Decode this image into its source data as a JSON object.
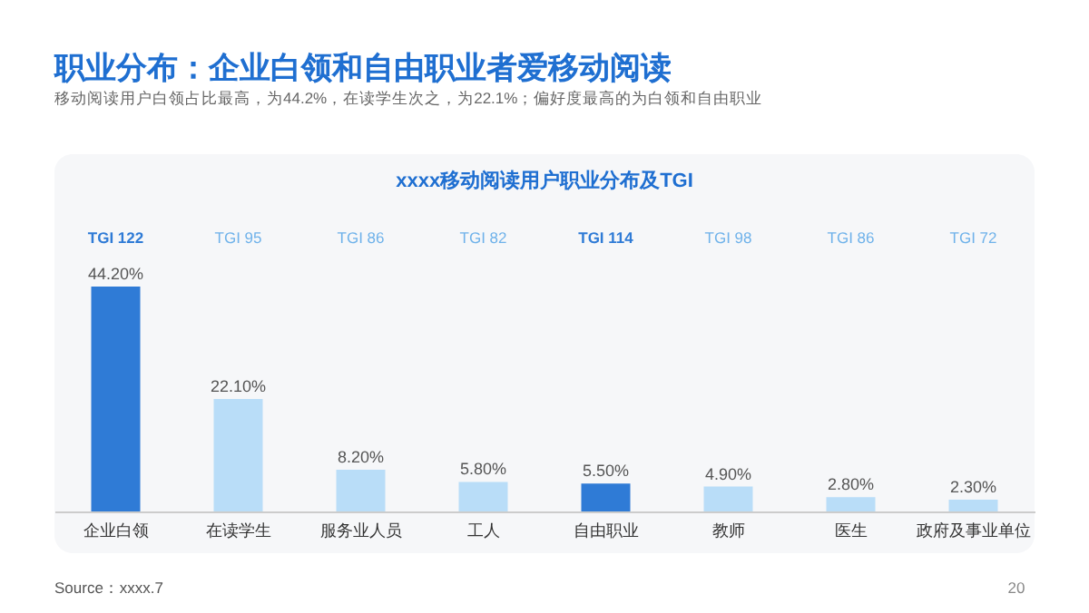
{
  "chart_data": {
    "type": "bar",
    "title": "职业分布：企业白领和自由职业者爱移动阅读",
    "subtitle": "移动阅读用户白领占比最高，为44.2%，在读学生次之，为22.1%；偏好度最高的为白领和自由职业",
    "categories": [
      "企业白领",
      "在读学生",
      "服务业人员",
      "工人",
      "自由职业",
      "教师",
      "医生",
      "政府及事业单位"
    ],
    "values": [
      44.2,
      22.1,
      8.2,
      5.8,
      5.5,
      4.9,
      2.8,
      2.3
    ],
    "value_labels": [
      "44.20%",
      "22.10%",
      "8.20%",
      "5.80%",
      "5.50%",
      "4.90%",
      "2.80%",
      "2.30%"
    ],
    "colors": [
      "#2f7bd6",
      "#b9ddf8",
      "#b9ddf8",
      "#b9ddf8",
      "#2f7bd6",
      "#b9ddf8",
      "#b9ddf8",
      "#b9ddf8"
    ],
    "annotations": [
      "xxxx移动阅读用户职业分布及TGI",
      "Source：xxxx.7",
      "20",
      "TGI 122",
      "TGI 95",
      "TGI 86",
      "TGI 82",
      "TGI 114",
      "TGI 98",
      "TGI 86",
      "TGI 72"
    ]
  }
}
